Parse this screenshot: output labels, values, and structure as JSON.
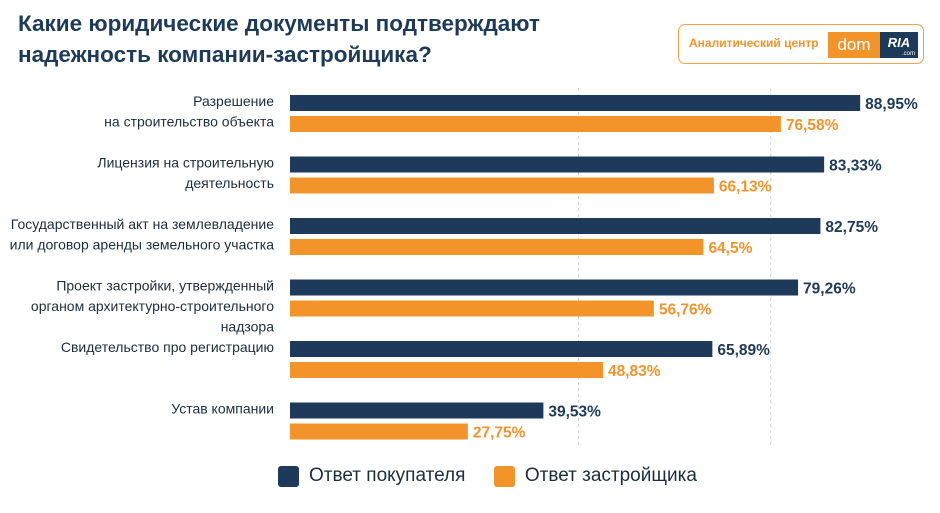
{
  "header": {
    "title_line1": "Какие юридические документы подтверждают",
    "title_line2": "надежность компании-застройщика?"
  },
  "logo": {
    "text": "Аналитический центр",
    "dom": "dom",
    "ria": "RIA",
    "ria_sub": ".com"
  },
  "colors": {
    "buyer": "#1d3a5a",
    "developer": "#f2942a",
    "grid": "#d0d0d0"
  },
  "chart_data": {
    "type": "bar",
    "orientation": "horizontal",
    "title": "Какие юридические документы подтверждают надежность компании-застройщика?",
    "xlim": [
      0,
      100
    ],
    "value_suffix": "%",
    "categories": [
      [
        "Разрешение",
        "на строительство объекта"
      ],
      [
        "Лицензия на строительную",
        "деятельность"
      ],
      [
        "Государственный акт на землевладение",
        "или договор аренды земельного участка"
      ],
      [
        "Проект застройки, утвержденный",
        "органом архитектурно-строительного",
        "надзора"
      ],
      [
        "Свидетельство про регистрацию"
      ],
      [
        "Устав компании"
      ]
    ],
    "series": [
      {
        "name": "Ответ покупателя",
        "values": [
          88.95,
          83.33,
          82.75,
          79.26,
          65.89,
          39.53
        ],
        "labels": [
          "88,95%",
          "83,33%",
          "82,75%",
          "79,26%",
          "65,89%",
          "39,53%"
        ]
      },
      {
        "name": "Ответ застройщика",
        "values": [
          76.58,
          66.13,
          64.5,
          56.76,
          48.83,
          27.75
        ],
        "labels": [
          "76,58%",
          "66,13%",
          "64,5%",
          "56,76%",
          "48,83%",
          "27,75%"
        ]
      }
    ]
  },
  "legend": {
    "buyer": "Ответ покупателя",
    "developer": "Ответ застройщика"
  }
}
